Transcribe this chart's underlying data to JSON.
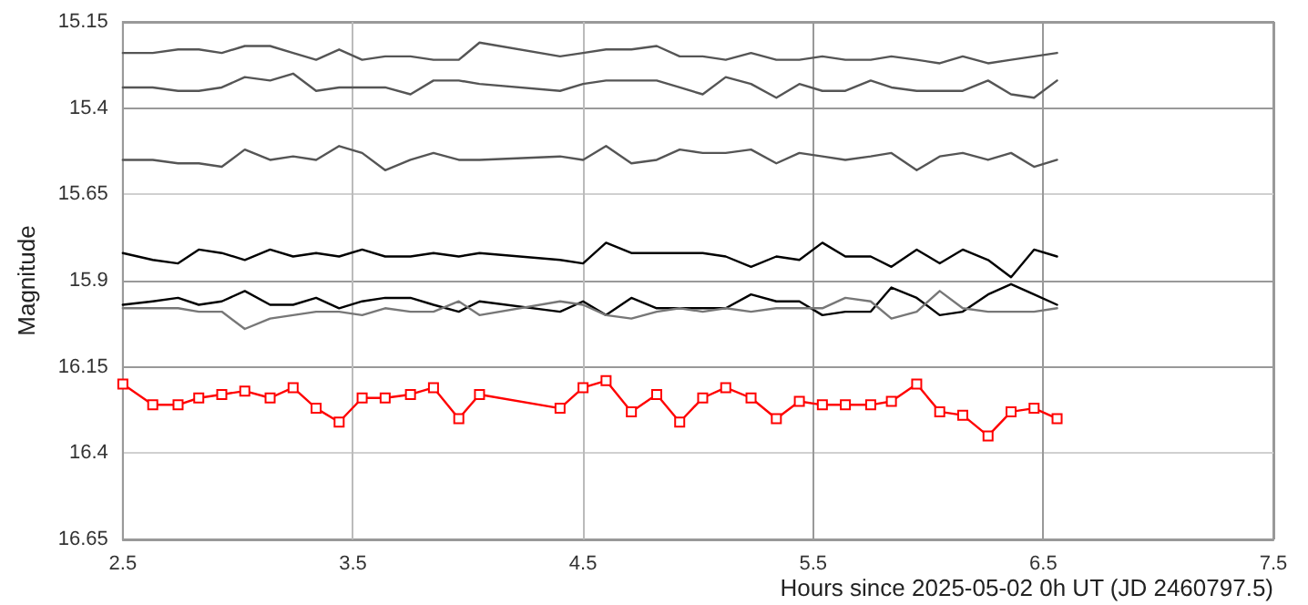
{
  "chart_data": {
    "type": "line",
    "xlabel": "Hours since 2025-05-02 0h UT (JD 2460797.5)",
    "ylabel": "Magnitude",
    "x": [
      2.5,
      2.63,
      2.74,
      2.83,
      2.93,
      3.03,
      3.14,
      3.24,
      3.34,
      3.44,
      3.54,
      3.64,
      3.75,
      3.85,
      3.96,
      4.05,
      4.4,
      4.5,
      4.6,
      4.71,
      4.82,
      4.92,
      5.02,
      5.12,
      5.23,
      5.34,
      5.44,
      5.54,
      5.64,
      5.75,
      5.84,
      5.95,
      6.05,
      6.15,
      6.26,
      6.36,
      6.46,
      6.56
    ],
    "xlim": [
      2.5,
      7.5
    ],
    "xticks": [
      2.5,
      3.5,
      4.5,
      5.5,
      6.5,
      7.5
    ],
    "ylim": [
      16.65,
      15.15
    ],
    "yticks": [
      15.15,
      15.4,
      15.65,
      15.9,
      16.15,
      16.4,
      16.65
    ],
    "grid": true,
    "marker": "none",
    "series": [
      {
        "color": "#555555",
        "values": [
          15.24,
          15.24,
          15.23,
          15.23,
          15.24,
          15.22,
          15.22,
          15.24,
          15.26,
          15.23,
          15.26,
          15.25,
          15.25,
          15.26,
          15.26,
          15.21,
          15.25,
          15.24,
          15.23,
          15.23,
          15.22,
          15.25,
          15.25,
          15.26,
          15.24,
          15.26,
          15.26,
          15.25,
          15.26,
          15.26,
          15.25,
          15.26,
          15.27,
          15.25,
          15.27,
          15.26,
          15.25,
          15.24
        ]
      },
      {
        "color": "#555555",
        "values": [
          15.34,
          15.34,
          15.35,
          15.35,
          15.34,
          15.31,
          15.32,
          15.3,
          15.35,
          15.34,
          15.34,
          15.34,
          15.36,
          15.32,
          15.32,
          15.33,
          15.35,
          15.33,
          15.32,
          15.32,
          15.32,
          15.34,
          15.36,
          15.31,
          15.33,
          15.37,
          15.33,
          15.35,
          15.35,
          15.32,
          15.34,
          15.35,
          15.35,
          15.35,
          15.32,
          15.36,
          15.37,
          15.32
        ]
      },
      {
        "color": "#555555",
        "values": [
          15.55,
          15.55,
          15.56,
          15.56,
          15.57,
          15.52,
          15.55,
          15.54,
          15.55,
          15.51,
          15.53,
          15.58,
          15.55,
          15.53,
          15.55,
          15.55,
          15.54,
          15.55,
          15.51,
          15.56,
          15.55,
          15.52,
          15.53,
          15.53,
          15.52,
          15.56,
          15.53,
          15.54,
          15.55,
          15.54,
          15.53,
          15.58,
          15.54,
          15.53,
          15.55,
          15.53,
          15.57,
          15.55
        ]
      },
      {
        "color": "#000000",
        "values": [
          15.82,
          15.84,
          15.85,
          15.81,
          15.82,
          15.84,
          15.81,
          15.83,
          15.82,
          15.83,
          15.81,
          15.83,
          15.83,
          15.82,
          15.83,
          15.82,
          15.84,
          15.85,
          15.79,
          15.82,
          15.82,
          15.82,
          15.82,
          15.83,
          15.86,
          15.83,
          15.84,
          15.79,
          15.83,
          15.83,
          15.86,
          15.81,
          15.85,
          15.81,
          15.84,
          15.89,
          15.81,
          15.83
        ]
      },
      {
        "color": "#000000",
        "values": [
          15.97,
          15.96,
          15.95,
          15.97,
          15.96,
          15.93,
          15.97,
          15.97,
          15.95,
          15.98,
          15.96,
          15.95,
          15.95,
          15.97,
          15.99,
          15.96,
          15.99,
          15.96,
          16.0,
          15.95,
          15.98,
          15.98,
          15.98,
          15.98,
          15.94,
          15.96,
          15.96,
          16.0,
          15.99,
          15.99,
          15.92,
          15.95,
          16.0,
          15.99,
          15.94,
          15.91,
          15.94,
          15.97
        ]
      },
      {
        "color": "#777777",
        "values": [
          15.98,
          15.98,
          15.98,
          15.99,
          15.99,
          16.04,
          16.01,
          16.0,
          15.99,
          15.99,
          16.0,
          15.98,
          15.99,
          15.99,
          15.96,
          16.0,
          15.96,
          15.97,
          16.0,
          16.01,
          15.99,
          15.98,
          15.99,
          15.98,
          15.99,
          15.98,
          15.98,
          15.98,
          15.95,
          15.96,
          16.01,
          15.99,
          15.93,
          15.98,
          15.99,
          15.99,
          15.99,
          15.98
        ]
      },
      {
        "color": "#ff0000",
        "marker": "square",
        "values": [
          16.2,
          16.26,
          16.26,
          16.24,
          16.23,
          16.22,
          16.24,
          16.21,
          16.27,
          16.31,
          16.24,
          16.24,
          16.23,
          16.21,
          16.3,
          16.23,
          16.27,
          16.21,
          16.19,
          16.28,
          16.23,
          16.31,
          16.24,
          16.21,
          16.24,
          16.3,
          16.25,
          16.26,
          16.26,
          16.26,
          16.25,
          16.2,
          16.28,
          16.29,
          16.35,
          16.28,
          16.27,
          16.3
        ]
      }
    ]
  }
}
